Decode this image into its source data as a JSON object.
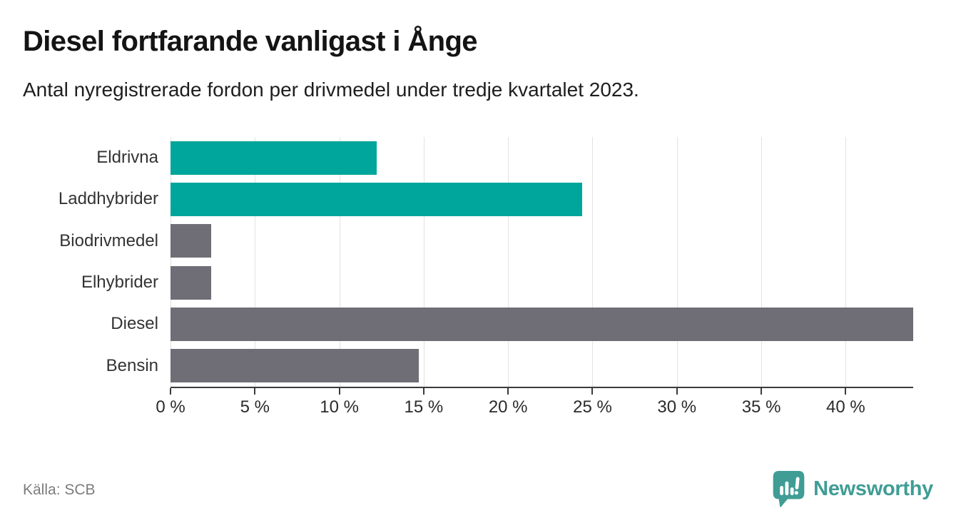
{
  "header": {
    "title": "Diesel fortfarande vanligast i Ånge",
    "subtitle": "Antal nyregistrerade fordon per drivmedel under tredje kvartalet 2023."
  },
  "chart_data": {
    "type": "bar",
    "orientation": "horizontal",
    "title": "Diesel fortfarande vanligast i Ånge",
    "xlabel": "",
    "ylabel": "",
    "unit": "%",
    "categories": [
      "Eldrivna",
      "Laddhybrider",
      "Biodrivmedel",
      "Elhybrider",
      "Diesel",
      "Bensin"
    ],
    "values": [
      12.2,
      24.4,
      2.4,
      2.4,
      44,
      14.7
    ],
    "xlim": [
      0,
      44
    ],
    "x_ticks": [
      {
        "value": 0,
        "label": "0 %"
      },
      {
        "value": 5,
        "label": "5 %"
      },
      {
        "value": 10,
        "label": "10 %"
      },
      {
        "value": 15,
        "label": "15 %"
      },
      {
        "value": 20,
        "label": "20 %"
      },
      {
        "value": 25,
        "label": "25 %"
      },
      {
        "value": 30,
        "label": "30 %"
      },
      {
        "value": 35,
        "label": "35 %"
      },
      {
        "value": 40,
        "label": "40 %"
      }
    ],
    "bar_colors": [
      "teal",
      "teal",
      "gray",
      "gray",
      "gray",
      "gray"
    ],
    "palette": {
      "teal": "#00A59B",
      "gray": "#6F6E76"
    },
    "grid": "vertical",
    "gridline_color": "#E2E2E2",
    "axis_color": "#3B3B3B",
    "legend_position": "none"
  },
  "footer": {
    "source": "Källa: SCB",
    "brand": "Newsworthy",
    "brand_color": "#3F9D95"
  }
}
